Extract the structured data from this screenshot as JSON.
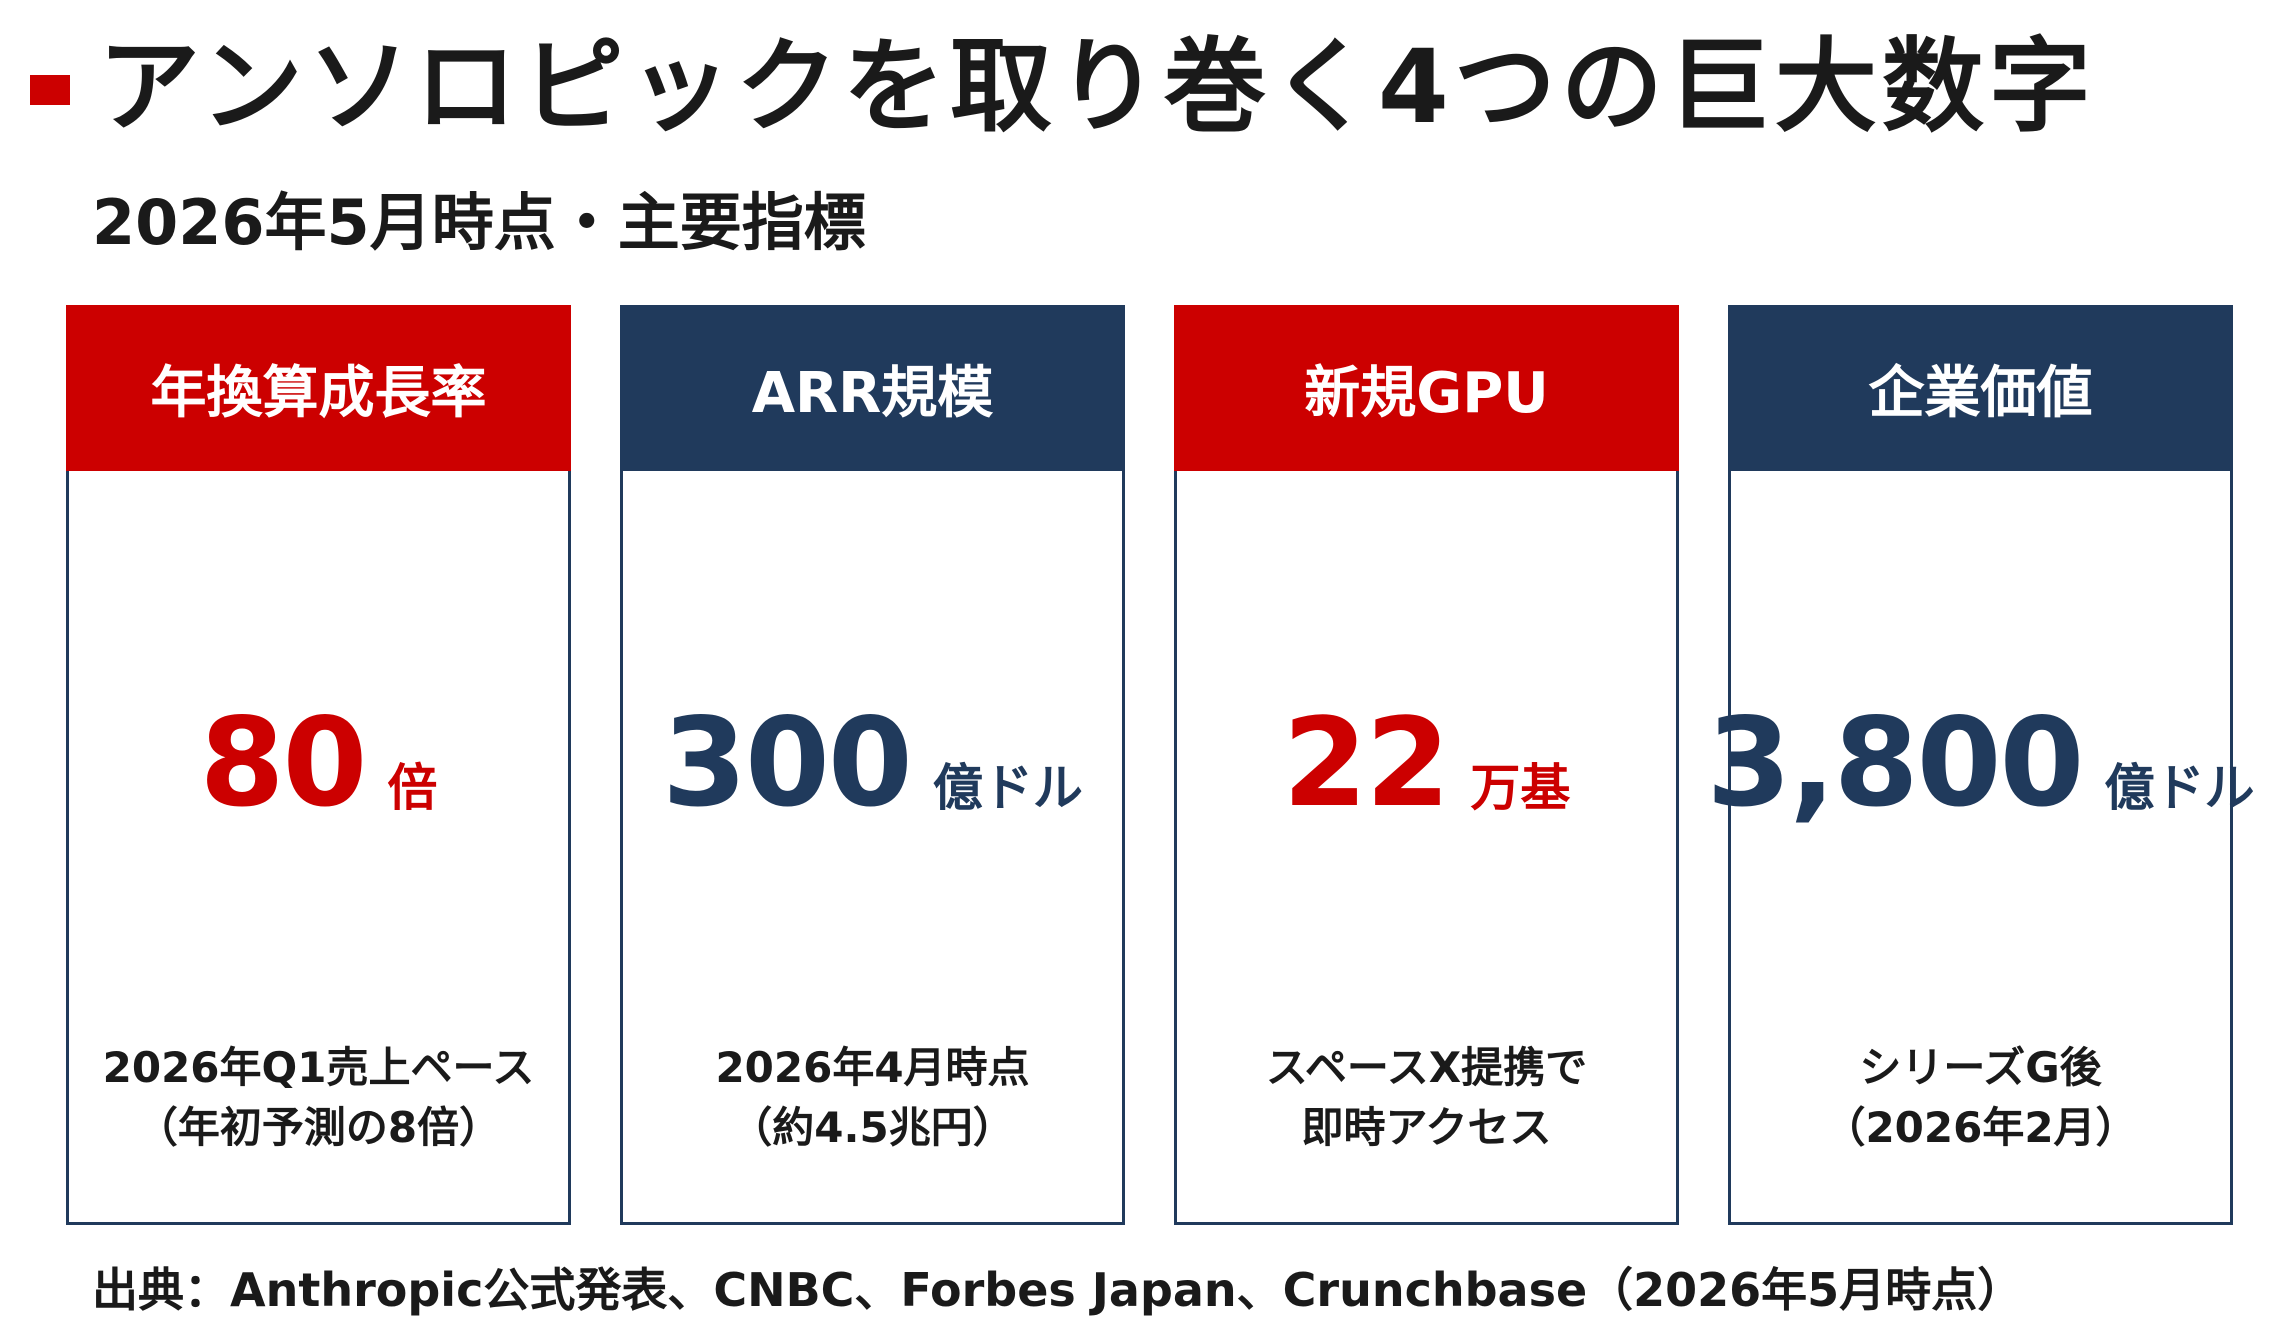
{
  "title": "アンソロピックを取り巻く4つの巨大数字",
  "subtitle": "2026年5月時点・主要指標",
  "colors": {
    "accent_red": "#cc0000",
    "navy": "#203a5c"
  },
  "cards": [
    {
      "header": "年換算成長率",
      "header_color": "red",
      "value": "80",
      "unit": "倍",
      "note_line1": "2026年Q1売上ペース",
      "note_line2": "（年初予測の8倍）"
    },
    {
      "header": "ARR規模",
      "header_color": "navy",
      "value": "300",
      "unit": "億ドル",
      "note_line1": "2026年4月時点",
      "note_line2": "（約4.5兆円）"
    },
    {
      "header": "新規GPU",
      "header_color": "red",
      "value": "22",
      "unit": "万基",
      "note_line1": "スペースX提携で",
      "note_line2": "即時アクセス"
    },
    {
      "header": "企業価値",
      "header_color": "navy",
      "value": "3,800",
      "unit": "億ドル",
      "note_line1": "シリーズG後",
      "note_line2": "（2026年2月）"
    }
  ],
  "source": "出典：Anthropic公式発表、CNBC、Forbes Japan、Crunchbase（2026年5月時点）"
}
